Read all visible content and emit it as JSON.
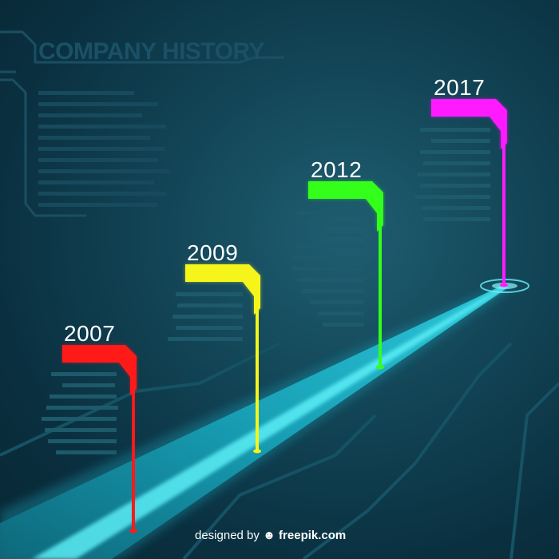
{
  "title": "COMPANY HISTORY",
  "milestones": [
    {
      "year": "2007",
      "color": "#ff1a1a"
    },
    {
      "year": "2009",
      "color": "#f5f51c"
    },
    {
      "year": "2012",
      "color": "#33ff1a"
    },
    {
      "year": "2017",
      "color": "#ff1aff"
    }
  ],
  "accent": "#27e8f0",
  "credit": {
    "prefix": "designed by",
    "icon": "freepik-logo-icon",
    "brand": "freepik.com"
  }
}
